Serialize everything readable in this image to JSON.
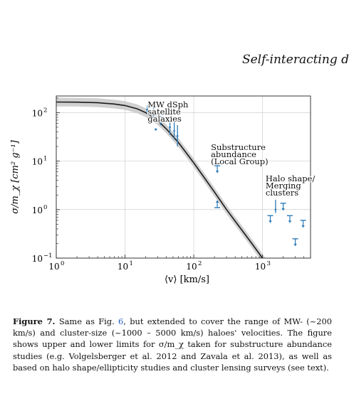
{
  "running_head": "Self-interacting d",
  "figure": {
    "chart_data": {
      "type": "line",
      "xscale": "log",
      "yscale": "log",
      "xlim": [
        1,
        5000
      ],
      "ylim": [
        0.1,
        220
      ],
      "xlabel": "⟨v⟩ [km/s]",
      "ylabel": "σ/m_χ [cm² g⁻¹]",
      "xticks": [
        {
          "value": 1,
          "base": "10",
          "exp": "0"
        },
        {
          "value": 10,
          "base": "10",
          "exp": "1"
        },
        {
          "value": 100,
          "base": "10",
          "exp": "2"
        },
        {
          "value": 1000,
          "base": "10",
          "exp": "3"
        }
      ],
      "yticks": [
        {
          "value": 0.1,
          "base": "10",
          "exp": "−1"
        },
        {
          "value": 1,
          "base": "10",
          "exp": "0"
        },
        {
          "value": 10,
          "base": "10",
          "exp": "1"
        },
        {
          "value": 100,
          "base": "10",
          "exp": "2"
        }
      ],
      "grid": true,
      "curve": {
        "x": [
          1,
          2,
          4,
          7,
          10,
          15,
          20,
          30,
          40,
          60,
          80,
          100,
          150,
          200,
          300,
          500,
          700,
          1000,
          1300
        ],
        "y": [
          165,
          164,
          160,
          150,
          140,
          120,
          100,
          68,
          46,
          24,
          14,
          9.2,
          4.1,
          2.3,
          1.0,
          0.38,
          0.2,
          0.1,
          0.058
        ]
      },
      "band_halfwidth_dex": 0.09,
      "data_color": "#2a7ab8",
      "constraints": [
        {
          "x": 21,
          "y": 115,
          "kind": "range",
          "lo": 95,
          "hi": 140
        },
        {
          "x": 26,
          "y": 100,
          "kind": "range",
          "lo": 80,
          "hi": 125
        },
        {
          "x": 28,
          "y": 45,
          "kind": "point"
        },
        {
          "x": 33,
          "y": 70,
          "kind": "range",
          "lo": 55,
          "hi": 85
        },
        {
          "x": 45,
          "y": 50,
          "kind": "range",
          "lo": 35,
          "hi": 70
        },
        {
          "x": 52,
          "y": 42,
          "kind": "range",
          "lo": 28,
          "hi": 80
        },
        {
          "x": 58,
          "y": 33,
          "kind": "range",
          "lo": 20,
          "hi": 55
        },
        {
          "x": 220,
          "y": 8,
          "kind": "upper"
        },
        {
          "x": 220,
          "y": 1.1,
          "kind": "lower"
        },
        {
          "x": 1300,
          "y": 0.75,
          "kind": "upper"
        },
        {
          "x": 1550,
          "y": 1.0,
          "kind": "range",
          "lo": 0.85,
          "hi": 1.6
        },
        {
          "x": 2000,
          "y": 1.35,
          "kind": "upper"
        },
        {
          "x": 2500,
          "y": 0.75,
          "kind": "upper"
        },
        {
          "x": 3000,
          "y": 0.25,
          "kind": "upper"
        },
        {
          "x": 3900,
          "y": 0.6,
          "kind": "upper"
        }
      ],
      "annotations": [
        {
          "lines": [
            "MW dSph",
            "satellite",
            "galaxies"
          ],
          "x": 24
        },
        {
          "lines": [
            "Substructure",
            "abundance",
            "(Local Group)"
          ],
          "x": 200
        },
        {
          "lines": [
            "Halo shape/",
            "Merging",
            "clusters"
          ],
          "x": 1250
        }
      ]
    }
  },
  "caption": {
    "label": "Figure 7.",
    "text_before_ref": " Same as Fig. ",
    "ref": "6",
    "text_after_ref": ", but extended to cover the range of MW- (~200 km/s) and cluster-size (~1000 – 5000 km/s) haloes' velocities. The figure shows upper and lower limits for σ/m_χ taken for substructure abundance studies (e.g. Volgelsberger et al. 2012 and Zavala et al. 2013), as well as based on halo shape/ellipticity studies and cluster lensing surveys (see text)."
  }
}
